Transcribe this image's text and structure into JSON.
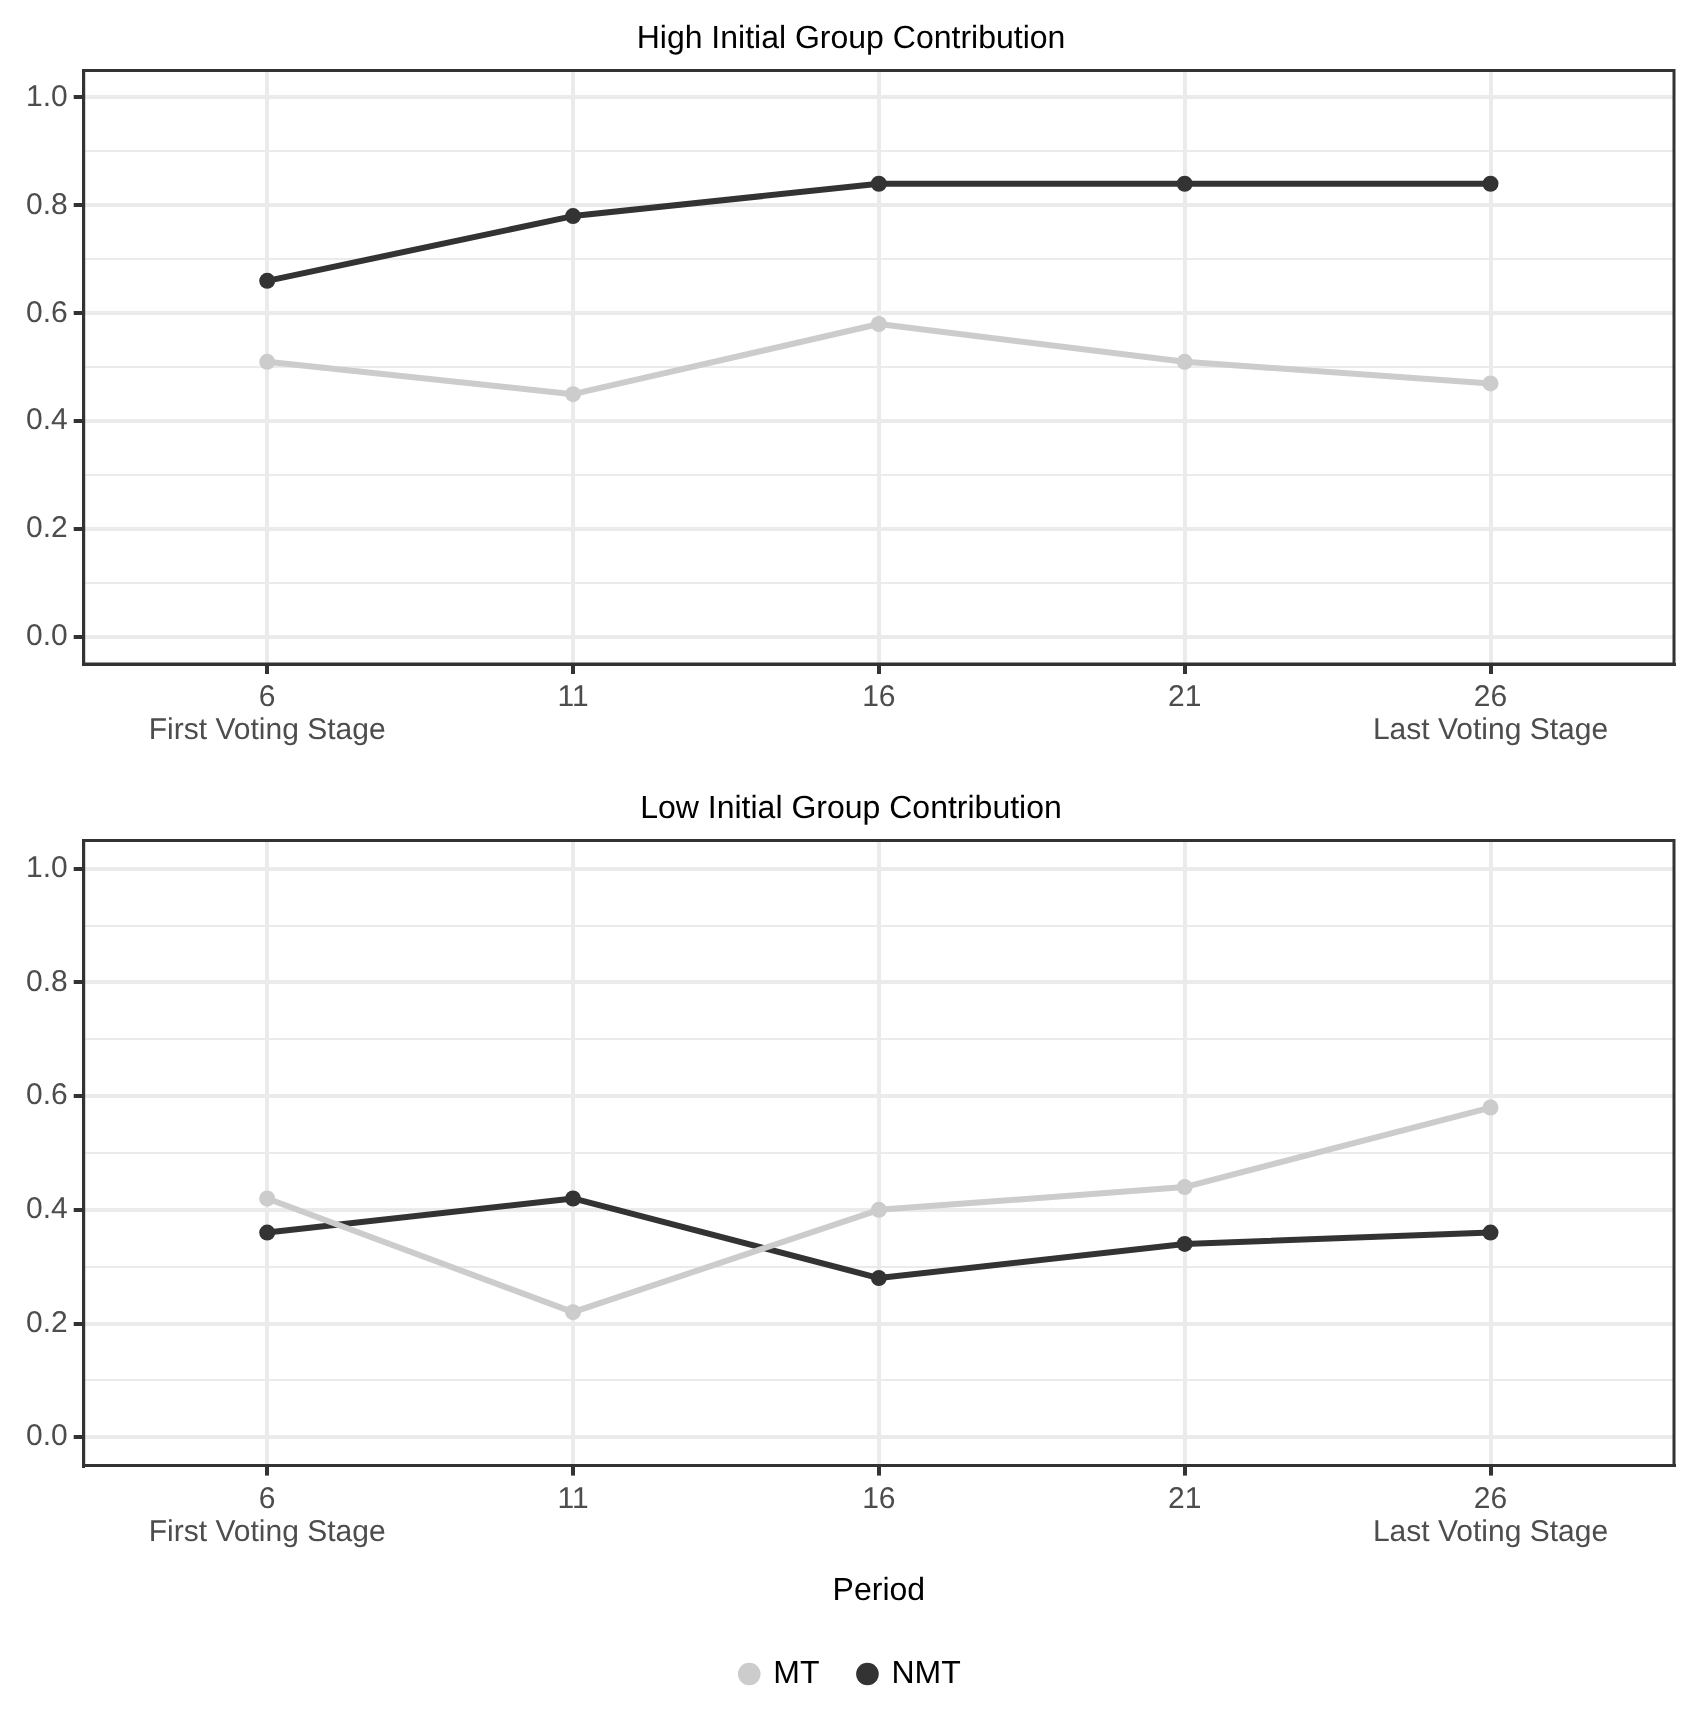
{
  "chart_data": [
    {
      "type": "line",
      "title": "High Initial Group Contribution",
      "x": [
        6,
        11,
        16,
        21,
        26
      ],
      "annotations": [
        "First Voting Stage",
        "Last Voting Stage"
      ],
      "series": [
        {
          "color": "#cccccc",
          "values": [
            0.51,
            0.45,
            0.58,
            0.51,
            0.47
          ]
        },
        {
          "color": "#333333",
          "values": [
            0.66,
            0.78,
            0.84,
            0.84,
            0.84
          ]
        }
      ],
      "xlim": [
        3,
        29
      ],
      "xticks": [
        6,
        11,
        16,
        21,
        26
      ],
      "ylim": [
        -0.05,
        1.05
      ],
      "yticks": [
        {
          "value": 0,
          "label": "0.0"
        },
        {
          "value": 0.1,
          "label": null
        },
        {
          "value": 0.2,
          "label": "0.2"
        },
        {
          "value": 0.3,
          "label": null
        },
        {
          "value": 0.4,
          "label": "0.4"
        },
        {
          "value": 0.5,
          "label": null
        },
        {
          "value": 0.6,
          "label": "0.6"
        },
        {
          "value": 0.7,
          "label": null
        },
        {
          "value": 0.8,
          "label": "0.8"
        },
        {
          "value": 0.9,
          "label": null
        },
        {
          "value": 1,
          "label": "1.0"
        }
      ],
      "grid": true,
      "marker": "circle",
      "line_style": "solid"
    },
    {
      "type": "line",
      "title": "Low Initial Group Contribution",
      "xlabel": "Period",
      "x": [
        6,
        11,
        16,
        21,
        26
      ],
      "annotations": [
        "First Voting Stage",
        "Last Voting Stage"
      ],
      "series": [
        {
          "name": "MT",
          "color": "#cccccc",
          "values": [
            0.42,
            0.22,
            0.4,
            0.44,
            0.58
          ]
        },
        {
          "name": "NMT",
          "color": "#333333",
          "values": [
            0.36,
            0.42,
            0.28,
            0.34,
            0.36
          ]
        }
      ],
      "xlim": [
        3,
        29
      ],
      "xticks": [
        6,
        11,
        16,
        21,
        26
      ],
      "ylim": [
        -0.05,
        1.05
      ],
      "yticks": [
        {
          "value": 0,
          "label": "0.0"
        },
        {
          "value": 0.1,
          "label": null
        },
        {
          "value": 0.2,
          "label": "0.2"
        },
        {
          "value": 0.3,
          "label": null
        },
        {
          "value": 0.4,
          "label": "0.4"
        },
        {
          "value": 0.5,
          "label": null
        },
        {
          "value": 0.6,
          "label": "0.6"
        },
        {
          "value": 0.7,
          "label": null
        },
        {
          "value": 0.8,
          "label": "0.8"
        },
        {
          "value": 0.9,
          "label": null
        },
        {
          "value": 1,
          "label": "1.0"
        }
      ],
      "grid": true,
      "legend": "bottom",
      "marker": "circle",
      "line_style": "solid"
    }
  ]
}
